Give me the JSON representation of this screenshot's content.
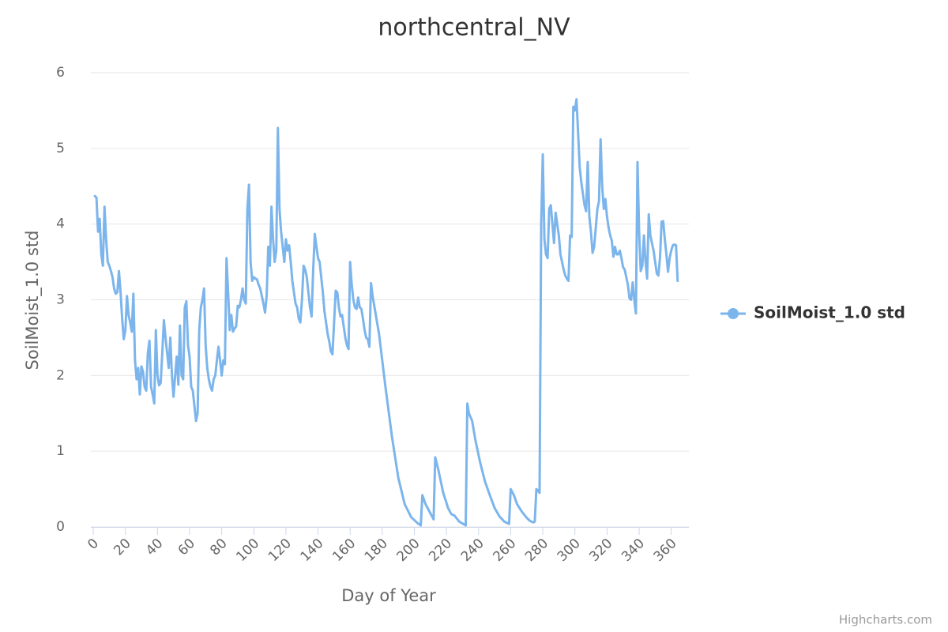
{
  "chart_data": {
    "type": "line",
    "title": "northcentral_NV",
    "x_label": "Day of Year",
    "y_label": "SoilMoist_1.0 std",
    "credits": "Highcharts.com",
    "xlim": [
      -1.5,
      371
    ],
    "xticks": [
      0,
      20,
      40,
      60,
      80,
      100,
      120,
      140,
      160,
      180,
      200,
      220,
      240,
      260,
      280,
      300,
      320,
      340,
      360
    ],
    "ylim": [
      0,
      6
    ],
    "yticks": [
      0,
      1,
      2,
      3,
      4,
      5,
      6
    ],
    "grid": true,
    "legend": "right",
    "x": [
      1,
      2,
      3,
      4,
      5,
      6,
      7,
      8,
      9,
      10,
      11,
      12,
      13,
      14,
      15,
      16,
      17,
      18,
      19,
      20,
      21,
      22,
      23,
      24,
      25,
      26,
      27,
      28,
      29,
      30,
      31,
      32,
      33,
      34,
      35,
      36,
      37,
      38,
      39,
      40,
      41,
      42,
      43,
      44,
      45,
      46,
      47,
      48,
      49,
      50,
      51,
      52,
      53,
      54,
      55,
      56,
      57,
      58,
      59,
      60,
      61,
      62,
      63,
      64,
      65,
      66,
      67,
      68,
      69,
      70,
      71,
      72,
      73,
      74,
      75,
      76,
      77,
      78,
      79,
      80,
      81,
      82,
      83,
      84,
      85,
      86,
      87,
      88,
      89,
      90,
      91,
      92,
      93,
      94,
      95,
      96,
      97,
      98,
      99,
      100,
      101,
      102,
      103,
      104,
      105,
      106,
      107,
      108,
      109,
      110,
      111,
      112,
      113,
      114,
      115,
      116,
      117,
      118,
      119,
      120,
      121,
      122,
      123,
      124,
      125,
      126,
      127,
      128,
      129,
      130,
      131,
      132,
      133,
      134,
      135,
      136,
      137,
      138,
      139,
      140,
      141,
      142,
      143,
      144,
      145,
      146,
      147,
      148,
      149,
      150,
      151,
      152,
      153,
      154,
      155,
      156,
      157,
      158,
      159,
      160,
      161,
      162,
      163,
      164,
      165,
      166,
      167,
      168,
      169,
      170,
      171,
      172,
      173,
      174,
      178,
      182,
      186,
      190,
      194,
      198,
      202,
      204,
      205,
      207,
      210,
      212,
      213,
      215,
      218,
      221,
      223,
      225,
      228,
      232,
      233,
      234,
      236,
      238,
      241,
      244,
      247,
      250,
      253,
      256,
      259,
      260,
      262,
      264,
      267,
      270,
      272,
      274,
      275,
      276,
      277,
      278,
      279,
      280,
      281,
      282,
      283,
      284,
      285,
      286,
      287,
      288,
      289,
      290,
      291,
      292,
      293,
      294,
      295,
      296,
      297,
      298,
      299,
      300,
      301,
      302,
      303,
      304,
      305,
      306,
      307,
      308,
      309,
      310,
      311,
      312,
      313,
      314,
      315,
      316,
      317,
      318,
      319,
      320,
      321,
      322,
      323,
      324,
      325,
      326,
      327,
      328,
      329,
      330,
      331,
      332,
      333,
      334,
      335,
      336,
      337,
      338,
      339,
      340,
      341,
      342,
      343,
      344,
      345,
      346,
      347,
      348,
      349,
      350,
      351,
      352,
      353,
      354,
      355,
      356,
      357,
      358,
      359,
      360,
      361,
      362,
      363,
      364
    ],
    "series": [
      {
        "name": "SoilMoist_1.0 std",
        "color": "#7cb5ec",
        "values": [
          4.37,
          4.35,
          3.9,
          4.07,
          3.6,
          3.45,
          4.23,
          3.8,
          3.5,
          3.45,
          3.38,
          3.3,
          3.15,
          3.08,
          3.1,
          3.38,
          3.1,
          2.75,
          2.48,
          2.6,
          3.05,
          2.8,
          2.7,
          2.58,
          3.08,
          2.2,
          1.95,
          2.1,
          1.75,
          2.12,
          2.05,
          1.85,
          1.8,
          2.3,
          2.46,
          1.85,
          1.75,
          1.63,
          2.6,
          2.0,
          1.87,
          1.9,
          2.3,
          2.73,
          2.5,
          2.3,
          2.1,
          2.5,
          2.0,
          1.72,
          2.0,
          2.25,
          1.88,
          2.66,
          2.0,
          1.95,
          2.9,
          2.98,
          2.4,
          2.25,
          1.85,
          1.8,
          1.6,
          1.4,
          1.5,
          2.6,
          2.9,
          3.0,
          3.15,
          2.4,
          2.1,
          1.95,
          1.85,
          1.8,
          1.95,
          2.0,
          2.2,
          2.38,
          2.2,
          2.0,
          2.2,
          2.15,
          3.55,
          3.1,
          2.6,
          2.8,
          2.58,
          2.62,
          2.65,
          2.92,
          2.9,
          3.0,
          3.15,
          3.0,
          2.95,
          4.2,
          4.52,
          3.5,
          3.25,
          3.3,
          3.28,
          3.27,
          3.2,
          3.15,
          3.05,
          2.95,
          2.83,
          3.05,
          3.7,
          3.45,
          4.23,
          3.8,
          3.5,
          3.65,
          5.27,
          4.2,
          3.9,
          3.7,
          3.5,
          3.8,
          3.65,
          3.72,
          3.5,
          3.25,
          3.1,
          2.95,
          2.9,
          2.75,
          2.7,
          3.0,
          3.45,
          3.4,
          3.3,
          3.1,
          2.9,
          2.78,
          3.4,
          3.87,
          3.7,
          3.55,
          3.5,
          3.3,
          3.1,
          2.85,
          2.7,
          2.55,
          2.45,
          2.32,
          2.28,
          2.7,
          3.12,
          3.1,
          2.9,
          2.78,
          2.8,
          2.65,
          2.5,
          2.4,
          2.35,
          3.5,
          3.2,
          3.0,
          2.9,
          2.88,
          3.03,
          2.9,
          2.88,
          2.75,
          2.6,
          2.5,
          2.48,
          2.38,
          3.22,
          3.05,
          2.55,
          1.85,
          1.2,
          0.65,
          0.3,
          0.13,
          0.05,
          0.02,
          0.42,
          0.3,
          0.18,
          0.1,
          0.92,
          0.75,
          0.45,
          0.25,
          0.17,
          0.15,
          0.07,
          0.02,
          1.63,
          1.5,
          1.4,
          1.15,
          0.85,
          0.6,
          0.42,
          0.25,
          0.14,
          0.07,
          0.04,
          0.5,
          0.42,
          0.3,
          0.2,
          0.12,
          0.08,
          0.06,
          0.07,
          0.5,
          0.48,
          0.45,
          4.0,
          4.92,
          3.8,
          3.6,
          3.55,
          4.2,
          4.25,
          4.0,
          3.75,
          4.15,
          4.0,
          3.85,
          3.6,
          3.5,
          3.4,
          3.32,
          3.28,
          3.25,
          3.85,
          3.83,
          5.55,
          5.5,
          5.65,
          5.2,
          4.75,
          4.55,
          4.4,
          4.25,
          4.17,
          4.82,
          4.1,
          3.9,
          3.62,
          3.7,
          3.95,
          4.2,
          4.3,
          5.12,
          4.5,
          4.2,
          4.33,
          4.1,
          3.95,
          3.85,
          3.78,
          3.57,
          3.7,
          3.6,
          3.6,
          3.65,
          3.55,
          3.43,
          3.4,
          3.3,
          3.2,
          3.02,
          3.0,
          3.23,
          3.0,
          2.82,
          4.82,
          3.9,
          3.38,
          3.45,
          3.85,
          3.5,
          3.28,
          4.13,
          3.85,
          3.75,
          3.65,
          3.5,
          3.35,
          3.32,
          3.55,
          4.03,
          4.04,
          3.8,
          3.6,
          3.37,
          3.55,
          3.65,
          3.72,
          3.73,
          3.72,
          3.25
        ]
      }
    ]
  }
}
